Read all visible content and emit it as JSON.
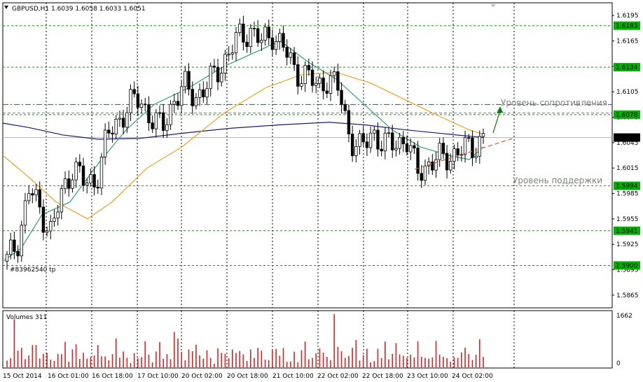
{
  "header": {
    "symbol": "GBPUSD,H1",
    "ohlc": "1.6039 1.6058 1.6033 1.6051"
  },
  "volume_panel": {
    "title": "Volumes 311",
    "max_label": "1662",
    "zero_label": "0"
  },
  "order_label": "#83962540 tp",
  "annotations": {
    "resistance": "Уровень сопротивления",
    "support": "Уровень поддержки"
  },
  "colors": {
    "bull_candle": "#ffffff",
    "bear_candle": "#000000",
    "level_line": "#00a000",
    "resistance_dash": "#008000",
    "red_dash": "#d0602a",
    "ma_blue": "#1a1a7a",
    "ma_orange": "#f0a020",
    "ma_teal": "#30a080",
    "volume_bars": "#e02020",
    "level_tag_bg": "#00b000"
  },
  "chart_data": {
    "type": "candlestick",
    "symbol": "GBPUSD",
    "timeframe": "H1",
    "y_axis": {
      "range": [
        1.585,
        1.621
      ],
      "ticks": [
        "1.6195",
        "1.6165",
        "1.6135",
        "1.6105",
        "1.6075",
        "1.6045",
        "1.6015",
        "1.5985",
        "1.5955",
        "1.5925",
        "1.5895",
        "1.5865"
      ]
    },
    "x_labels": [
      "15 Oct 2014",
      "16 Oct 01:00",
      "16 Oct 18:00",
      "17 Oct 10:00",
      "20 Oct 02:00",
      "20 Oct 18:00",
      "21 Oct 10:00",
      "22 Oct 02:00",
      "22 Oct 18:00",
      "23 Oct 10:00",
      "24 Oct 02:00"
    ],
    "current_price": "1.6051",
    "horizontal_levels": [
      {
        "value": 1.6183,
        "label": "1.6183"
      },
      {
        "value": 1.6134,
        "label": "1.6134"
      },
      {
        "value": 1.6078,
        "label": "1.6078"
      },
      {
        "value": 1.5994,
        "label": "1.5994"
      },
      {
        "value": 1.5941,
        "label": "1.5941"
      },
      {
        "value": 1.59,
        "label": "1.5900"
      }
    ],
    "close_path": [
      1.5905,
      1.593,
      1.599,
      1.5965,
      1.594,
      1.5985,
      1.602,
      1.5995,
      1.6,
      1.605,
      1.607,
      1.609,
      1.6095,
      1.6075,
      1.606,
      1.6095,
      1.611,
      1.61,
      1.611,
      1.613,
      1.615,
      1.617,
      1.6178,
      1.6162,
      1.6175,
      1.6155,
      1.613,
      1.6125,
      1.611,
      1.6122,
      1.6105,
      1.605,
      1.6035,
      1.606,
      1.604,
      1.6045,
      1.605,
      1.601,
      1.602,
      1.6025,
      1.603,
      1.6035,
      1.604,
      1.6051
    ],
    "volume_max": 1662,
    "volumes": [
      420,
      300,
      1662,
      900,
      620,
      300,
      560,
      700,
      880,
      380,
      420,
      620,
      300,
      200,
      650,
      480,
      820,
      300,
      620,
      760,
      520,
      480,
      300,
      560,
      380,
      820,
      520,
      340,
      280,
      560,
      900,
      420,
      620,
      300,
      200,
      520,
      300,
      560,
      900,
      420,
      300,
      520,
      880,
      460
    ]
  }
}
